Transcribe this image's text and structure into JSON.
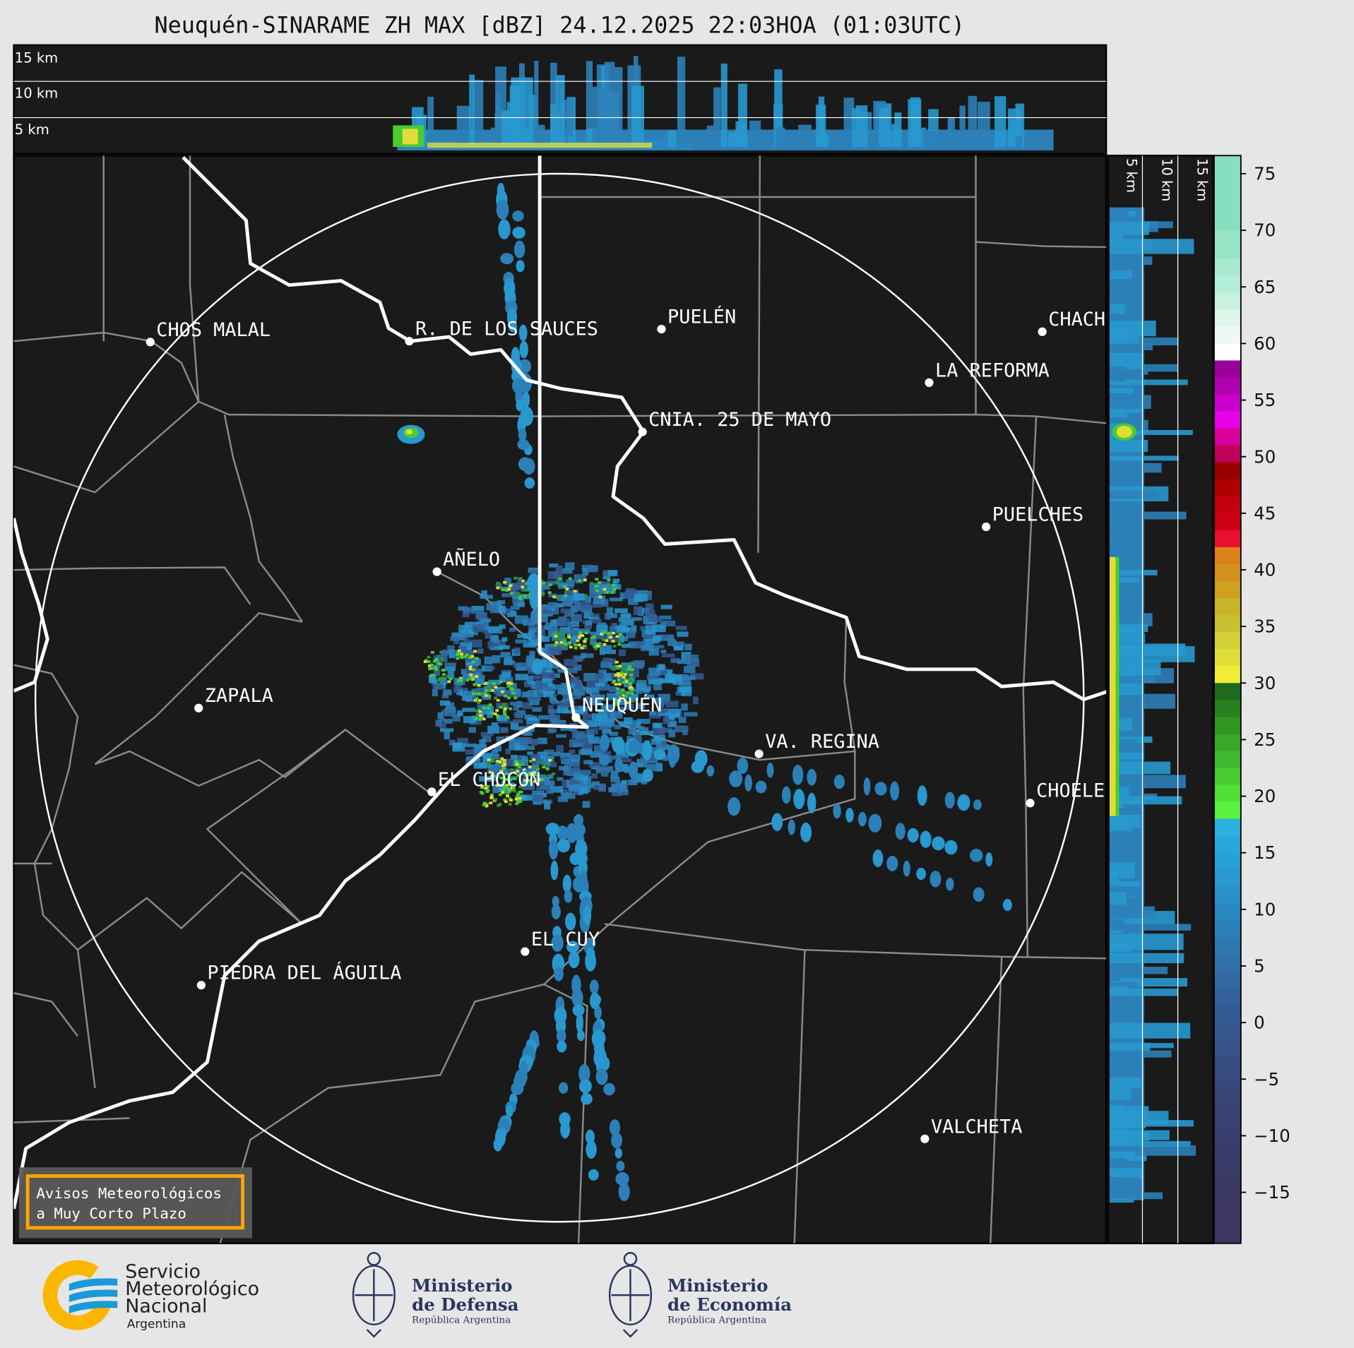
{
  "title": "Neuquén-SINARAME ZH MAX [dBZ] 24.12.2025 22:03HOA (01:03UTC)",
  "top_panel": {
    "labels": [
      "15 km",
      "10 km",
      "5 km"
    ]
  },
  "side_panel": {
    "labels": [
      "5 km",
      "10 km",
      "15 km"
    ]
  },
  "cities": [
    {
      "name": "CHOS MALAL"
    },
    {
      "name": "R. DE LOS SAUCES"
    },
    {
      "name": "PUELÉN"
    },
    {
      "name": "CHACH"
    },
    {
      "name": "LA REFORMA"
    },
    {
      "name": "CNIA. 25 DE MAYO"
    },
    {
      "name": "PUELCHES"
    },
    {
      "name": "AÑELO"
    },
    {
      "name": "ZAPALA"
    },
    {
      "name": "NEUQUÉN"
    },
    {
      "name": "VA. REGINA"
    },
    {
      "name": "EL CHOCÓN"
    },
    {
      "name": "CHOELE"
    },
    {
      "name": "EL CUY"
    },
    {
      "name": "PIEDRA DEL ÁGUILA"
    },
    {
      "name": "VALCHETA"
    }
  ],
  "colorbar": {
    "unit": "dBZ",
    "range": [
      -19.5,
      76.6
    ],
    "ticks": [
      "75",
      "70",
      "65",
      "60",
      "55",
      "50",
      "45",
      "40",
      "35",
      "30",
      "25",
      "20",
      "15",
      "10",
      "5",
      "0",
      "−5",
      "−10",
      "−15"
    ],
    "tick_values": [
      75,
      70,
      65,
      60,
      55,
      50,
      45,
      40,
      35,
      30,
      25,
      20,
      15,
      10,
      5,
      0,
      -5,
      -10,
      -15
    ],
    "segments": [
      [
        76.6,
        70,
        "#88dfbf"
      ],
      [
        70,
        67.5,
        "#96e3c5"
      ],
      [
        67.5,
        66,
        "#a6e9cf"
      ],
      [
        66,
        64.5,
        "#b4edd9"
      ],
      [
        64.5,
        63,
        "#c8f1e0"
      ],
      [
        63,
        61.5,
        "#dff6ec"
      ],
      [
        61.5,
        60,
        "#eef9f4"
      ],
      [
        60,
        58.5,
        "#ffffff"
      ],
      [
        58.5,
        57,
        "#9a009a"
      ],
      [
        57,
        55.5,
        "#b000b0"
      ],
      [
        55.5,
        54,
        "#cc00cc"
      ],
      [
        54,
        52.5,
        "#e800e8"
      ],
      [
        52.5,
        51,
        "#d8009a"
      ],
      [
        51,
        49.5,
        "#c0005a"
      ],
      [
        49.5,
        48,
        "#980000"
      ],
      [
        48,
        46.5,
        "#b00000"
      ],
      [
        46.5,
        45,
        "#c4000e"
      ],
      [
        45,
        43.5,
        "#cc0018"
      ],
      [
        43.5,
        42,
        "#ea1030"
      ],
      [
        42,
        40.5,
        "#dc8018"
      ],
      [
        40.5,
        39,
        "#d49020"
      ],
      [
        39,
        37.5,
        "#d0a020"
      ],
      [
        37.5,
        36,
        "#c8b428"
      ],
      [
        36,
        34.5,
        "#c8c030"
      ],
      [
        34.5,
        33,
        "#d4d038"
      ],
      [
        33,
        31.5,
        "#e0dc38"
      ],
      [
        31.5,
        30,
        "#f0ec38"
      ],
      [
        30,
        28.5,
        "#1e6b1e"
      ],
      [
        28.5,
        27,
        "#28801e"
      ],
      [
        27,
        25.5,
        "#309620"
      ],
      [
        25.5,
        24,
        "#38a828"
      ],
      [
        24,
        22.5,
        "#40b830"
      ],
      [
        22.5,
        21,
        "#48cc30"
      ],
      [
        21,
        19.5,
        "#50e038"
      ],
      [
        19.5,
        18,
        "#5af040"
      ],
      [
        18,
        16.5,
        "#2ab2e2"
      ],
      [
        16.5,
        15,
        "#29a8dc"
      ],
      [
        15,
        13.5,
        "#28a0d6"
      ],
      [
        13.5,
        12,
        "#2898cf"
      ],
      [
        12,
        10.5,
        "#2990c8"
      ],
      [
        10.5,
        9,
        "#2a88c0"
      ],
      [
        9,
        7.5,
        "#2c80b8"
      ],
      [
        7.5,
        6,
        "#2e78b0"
      ],
      [
        6,
        4.5,
        "#3070a8"
      ],
      [
        4.5,
        3,
        "#3168a0"
      ],
      [
        3,
        1.5,
        "#33629a"
      ],
      [
        1.5,
        0,
        "#345c94"
      ],
      [
        0,
        -1.5,
        "#35578e"
      ],
      [
        -1.5,
        -3,
        "#365288"
      ],
      [
        -3,
        -4.5,
        "#374d82"
      ],
      [
        -4.5,
        -6,
        "#38497c"
      ],
      [
        -6,
        -7.5,
        "#384577"
      ],
      [
        -7.5,
        -9,
        "#394272"
      ],
      [
        -9,
        -10.5,
        "#393f6e"
      ],
      [
        -10.5,
        -12,
        "#3a3c6a"
      ],
      [
        -12,
        -13.5,
        "#3a3a67"
      ],
      [
        -13.5,
        -15,
        "#3b3864"
      ],
      [
        -15,
        -16.5,
        "#3b3762"
      ],
      [
        -16.5,
        -19.5,
        "#3c3660"
      ]
    ]
  },
  "legend_box": {
    "line1": "Avisos Meteorológicos",
    "line2": "a Muy Corto Plazo",
    "border_color": "#ffa500"
  },
  "logos": {
    "smn": {
      "line1": "Servicio",
      "line2": "Meteorológico",
      "line3": "Nacional",
      "line4": "Argentina"
    },
    "defensa": {
      "line1": "Ministerio",
      "line2": "de Defensa",
      "line3": "República Argentina"
    },
    "economia": {
      "line1": "Ministerio",
      "line2": "de Economía",
      "line3": "República Argentina"
    }
  },
  "colors": {
    "map_background": "#1a1a1a",
    "page_background": "#e6e6e6",
    "logo_navy": "#2b3560",
    "smn_yellow": "#fbb600",
    "smn_blue": "#1a9ad6"
  }
}
